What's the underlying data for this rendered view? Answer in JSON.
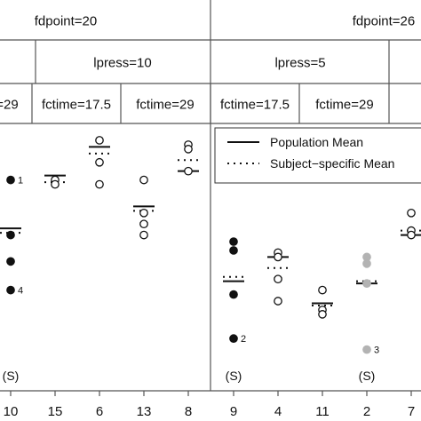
{
  "chart_data": {
    "type": "scatter",
    "strips": {
      "row1": [
        "fdpoint=20",
        "fdpoint=26"
      ],
      "row2": [
        "lpress=10",
        "lpress=5"
      ],
      "row3": [
        "=29",
        "fctime=17.5",
        "fctime=29",
        "fctime=17.5",
        "fctime=29"
      ]
    },
    "legend": {
      "entries": [
        {
          "name": "Population Mean",
          "style": "solid"
        },
        {
          "name": "Subject−specific Mean",
          "style": "dotted"
        }
      ],
      "placement": "top-right"
    },
    "ylim": [
      0,
      100
    ],
    "groups": [
      {
        "tick": "10",
        "label": "(S)",
        "population_mean": 58,
        "subject_mean": 56,
        "points": [
          {
            "y": 80,
            "fill": "black",
            "label": "1"
          },
          {
            "y": 55,
            "fill": "black"
          },
          {
            "y": 43,
            "fill": "black"
          },
          {
            "y": 30,
            "fill": "black",
            "label": "4"
          }
        ]
      },
      {
        "tick": "15",
        "population_mean": 82,
        "subject_mean": 79,
        "points": [
          {
            "y": 80,
            "fill": "white"
          },
          {
            "y": 78,
            "fill": "white"
          }
        ]
      },
      {
        "tick": "6",
        "population_mean": 95,
        "subject_mean": 92,
        "points": [
          {
            "y": 98,
            "fill": "white"
          },
          {
            "y": 88,
            "fill": "white"
          },
          {
            "y": 78,
            "fill": "white"
          }
        ]
      },
      {
        "tick": "13",
        "population_mean": 68,
        "subject_mean": 66,
        "points": [
          {
            "y": 80,
            "fill": "white"
          },
          {
            "y": 65,
            "fill": "white"
          },
          {
            "y": 60,
            "fill": "white"
          },
          {
            "y": 55,
            "fill": "white"
          }
        ]
      },
      {
        "tick": "8",
        "population_mean": 84,
        "subject_mean": 89,
        "points": [
          {
            "y": 96,
            "fill": "white"
          },
          {
            "y": 94,
            "fill": "white"
          },
          {
            "y": 84,
            "fill": "white"
          }
        ]
      },
      {
        "tick": "9",
        "label": "(S)",
        "population_mean": 34,
        "subject_mean": 36,
        "points": [
          {
            "y": 52,
            "fill": "black"
          },
          {
            "y": 48,
            "fill": "black"
          },
          {
            "y": 28,
            "fill": "black"
          },
          {
            "y": 8,
            "fill": "black",
            "label": "2"
          }
        ]
      },
      {
        "tick": "4",
        "population_mean": 45,
        "subject_mean": 40,
        "points": [
          {
            "y": 47,
            "fill": "white"
          },
          {
            "y": 45,
            "fill": "white"
          },
          {
            "y": 35,
            "fill": "white"
          },
          {
            "y": 25,
            "fill": "white"
          }
        ]
      },
      {
        "tick": "11",
        "population_mean": 24,
        "subject_mean": 23,
        "points": [
          {
            "y": 30,
            "fill": "white"
          },
          {
            "y": 21,
            "fill": "white"
          },
          {
            "y": 19,
            "fill": "white"
          }
        ]
      },
      {
        "tick": "2",
        "label": "(S)",
        "population_mean": 33,
        "subject_mean": 34,
        "points": [
          {
            "y": 45,
            "fill": "gray"
          },
          {
            "y": 42,
            "fill": "gray"
          },
          {
            "y": 33,
            "fill": "gray"
          },
          {
            "y": 3,
            "fill": "gray",
            "label": "3"
          }
        ]
      },
      {
        "tick": "7",
        "population_mean": 55,
        "subject_mean": 57,
        "points": [
          {
            "y": 65,
            "fill": "white"
          },
          {
            "y": 57,
            "fill": "white"
          },
          {
            "y": 55,
            "fill": "white"
          }
        ]
      }
    ]
  }
}
